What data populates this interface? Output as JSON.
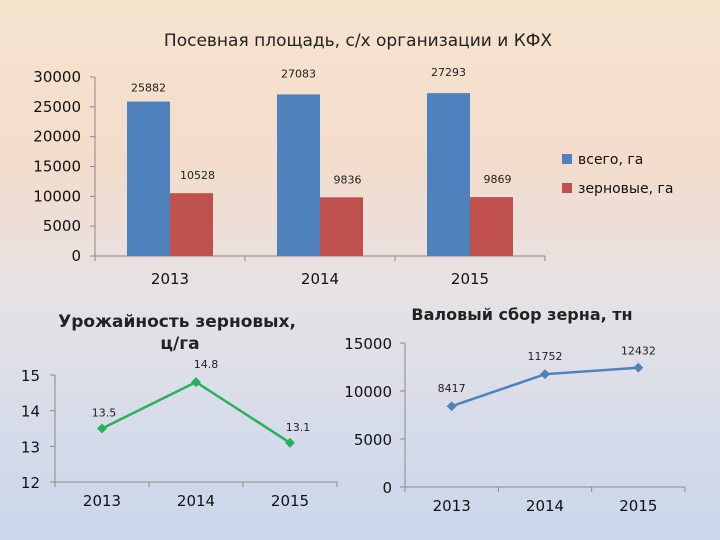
{
  "chart_data": [
    {
      "type": "bar",
      "title": "Посевная площадь, с/х организации и КФХ",
      "categories": [
        "2013",
        "2014",
        "2015"
      ],
      "series": [
        {
          "name": "всего, га",
          "values": [
            25882,
            27083,
            27293
          ],
          "color": "#4f81bd"
        },
        {
          "name": "зерновые, га",
          "values": [
            10528,
            9836,
            9869
          ],
          "color": "#c0504d"
        }
      ],
      "value_labels": [
        [
          "25882",
          "27083",
          "27293"
        ],
        [
          "10528",
          "9836",
          "9869"
        ]
      ],
      "y_ticks": [
        "0",
        "5000",
        "10000",
        "15000",
        "20000",
        "25000",
        "30000"
      ],
      "ylim": [
        0,
        30000
      ],
      "legend": "right",
      "grid": false
    },
    {
      "type": "line",
      "title": "Урожайность зерновых, ц/га",
      "categories": [
        "2013",
        "2014",
        "2015"
      ],
      "values": [
        13.5,
        14.8,
        13.1
      ],
      "value_labels": [
        "13.5",
        "14.8",
        "13.1"
      ],
      "color": "#27b15a",
      "y_ticks": [
        "12",
        "13",
        "14",
        "15"
      ],
      "ylim": [
        12,
        15
      ],
      "grid": false
    },
    {
      "type": "line",
      "title": "Валовый сбор зерна, тн",
      "categories": [
        "2013",
        "2014",
        "2015"
      ],
      "values": [
        8417,
        11752,
        12432
      ],
      "value_labels": [
        "8417",
        "11752",
        "12432"
      ],
      "color": "#4f81bd",
      "y_ticks": [
        "0",
        "5000",
        "10000",
        "15000"
      ],
      "ylim": [
        0,
        15000
      ],
      "grid": false
    }
  ]
}
